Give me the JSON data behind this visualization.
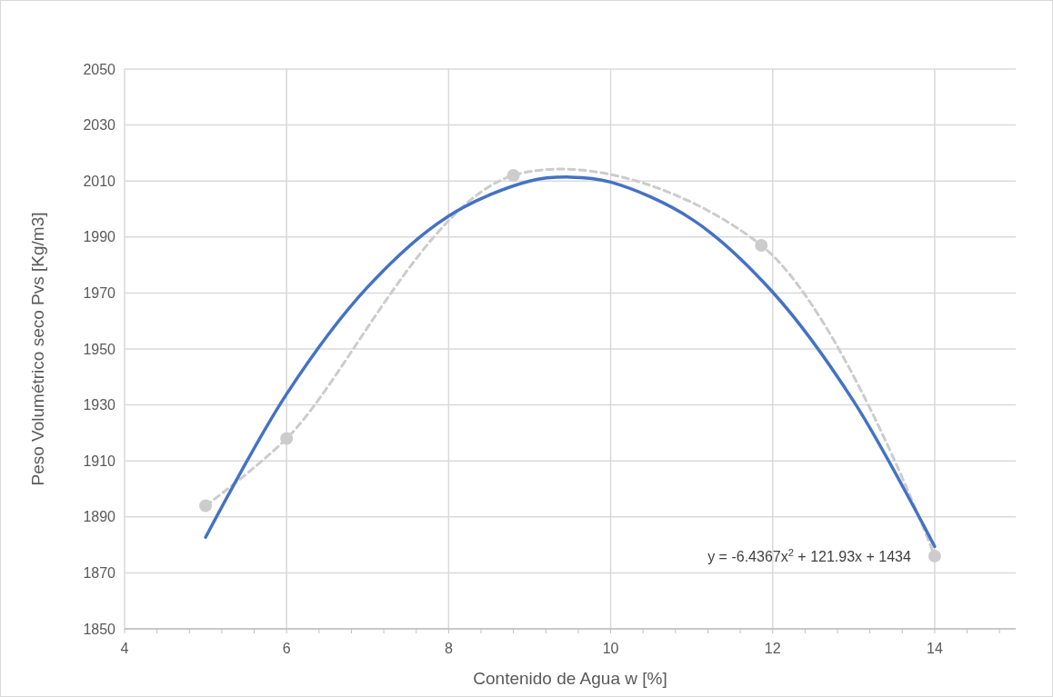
{
  "chart_data": {
    "type": "line",
    "xlabel": "Contenido de Agua w [%]",
    "ylabel": "Peso Volumétrico seco Pvs [Kg/m3]",
    "xlim": [
      4,
      15
    ],
    "ylim": [
      1850,
      2050
    ],
    "xticks": [
      4,
      {
        "value": 4.4,
        "label": null
      },
      {
        "value": 4.8,
        "label": null
      },
      {
        "value": 5.2,
        "label": null
      },
      {
        "value": 5.6,
        "label": null
      },
      6,
      {
        "value": 6.4,
        "label": null
      },
      {
        "value": 6.8,
        "label": null
      },
      {
        "value": 7.2,
        "label": null
      },
      {
        "value": 7.6,
        "label": null
      },
      8,
      {
        "value": 8.4,
        "label": null
      },
      {
        "value": 8.8,
        "label": null
      },
      {
        "value": 9.2,
        "label": null
      },
      {
        "value": 9.6,
        "label": null
      },
      10,
      {
        "value": 10.4,
        "label": null
      },
      {
        "value": 10.8,
        "label": null
      },
      {
        "value": 11.2,
        "label": null
      },
      {
        "value": 11.6,
        "label": null
      },
      12,
      {
        "value": 12.4,
        "label": null
      },
      {
        "value": 12.8,
        "label": null
      },
      {
        "value": 13.2,
        "label": null
      },
      {
        "value": 13.6,
        "label": null
      },
      14,
      {
        "value": 14.4,
        "label": null
      },
      {
        "value": 14.8,
        "label": null
      }
    ],
    "yticks": [
      1850,
      1870,
      1890,
      1910,
      1930,
      1950,
      1970,
      1990,
      2010,
      2030,
      2050
    ],
    "grid": true,
    "series": [
      {
        "color": "#cccccc",
        "marker": "circle",
        "line_style": "dashed",
        "x": [
          5,
          6,
          8.8,
          11.86,
          14
        ],
        "values": [
          1894,
          1918,
          2012,
          1987,
          1876
        ]
      },
      {
        "color": "#4472c4",
        "marker": "none",
        "line_style": "solid",
        "x": [
          5,
          6,
          7,
          8,
          9,
          9.5,
          10,
          11,
          12,
          13,
          14
        ],
        "values": [
          1882.7,
          1933.9,
          1972.1,
          1997.5,
          2010.0,
          2011.4,
          2009.6,
          1996.4,
          1970.3,
          1931.3,
          1879.4
        ]
      }
    ],
    "annotations": [
      {
        "text": "y = -6.4367x$^{2}$ + 121.93x + 1434",
        "x": 14,
        "y": 1876
      }
    ]
  }
}
